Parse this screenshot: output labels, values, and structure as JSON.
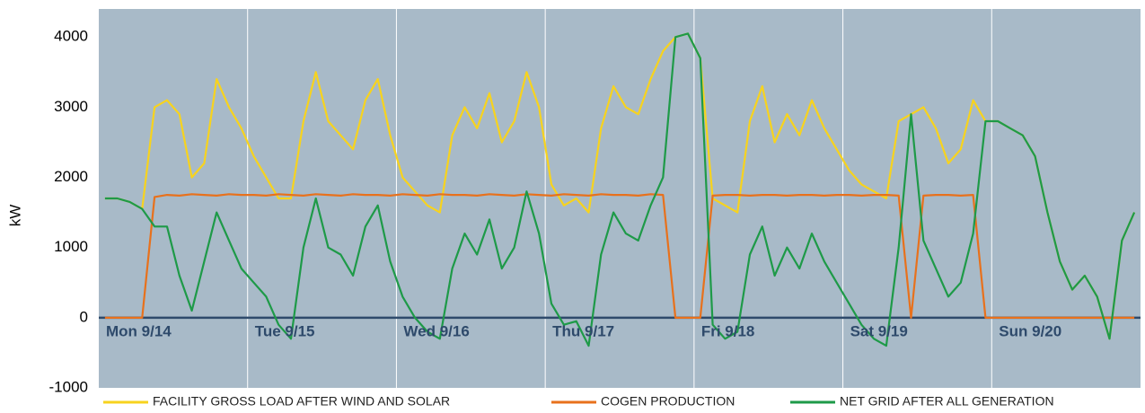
{
  "chart_data": {
    "type": "line",
    "ylabel": "kW",
    "categories": [
      "Mon  9/14",
      null,
      null,
      null,
      null,
      null,
      null,
      null,
      null,
      null,
      null,
      null,
      "Tue  9/15",
      null,
      null,
      null,
      null,
      null,
      null,
      null,
      null,
      null,
      null,
      null,
      "Wed  9/16",
      null,
      null,
      null,
      null,
      null,
      null,
      null,
      null,
      null,
      null,
      null,
      "Thu  9/17",
      null,
      null,
      null,
      null,
      null,
      null,
      null,
      null,
      null,
      null,
      null,
      "Fri  9/18",
      null,
      null,
      null,
      null,
      null,
      null,
      null,
      null,
      null,
      null,
      null,
      "Sat  9/19",
      null,
      null,
      null,
      null,
      null,
      null,
      null,
      null,
      null,
      null,
      null,
      "Sun  9/20",
      null,
      null,
      null,
      null,
      null,
      null,
      null,
      null,
      null,
      null,
      null
    ],
    "series": [
      {
        "name": "FACILITY GROSS LOAD AFTER WIND AND SOLAR",
        "color": "#f7d31e",
        "values": [
          1700,
          1700,
          1650,
          1550,
          3000,
          3100,
          2900,
          2000,
          2200,
          3400,
          3000,
          2700,
          2300,
          2000,
          1700,
          1700,
          2800,
          3500,
          2800,
          2600,
          2400,
          3100,
          3400,
          2600,
          2000,
          1800,
          1600,
          1500,
          2600,
          3000,
          2700,
          3200,
          2500,
          2800,
          3500,
          3000,
          1900,
          1600,
          1700,
          1500,
          2700,
          3300,
          3000,
          2900,
          3400,
          3800,
          4000,
          4050,
          3700,
          1700,
          1600,
          1500,
          2800,
          3300,
          2500,
          2900,
          2600,
          3100,
          2700,
          2400,
          2100,
          1900,
          1800,
          1700,
          2800,
          2900,
          3000,
          2700,
          2200,
          2400,
          3100,
          2800,
          2800,
          2700,
          2600,
          2300,
          1500,
          800,
          400,
          600,
          300,
          -300,
          1100,
          1500
        ]
      },
      {
        "name": "COGEN PRODUCTION",
        "color": "#e8711c",
        "values": [
          0,
          0,
          0,
          0,
          1720,
          1750,
          1740,
          1760,
          1750,
          1740,
          1760,
          1750,
          1750,
          1740,
          1760,
          1750,
          1740,
          1760,
          1750,
          1740,
          1760,
          1750,
          1750,
          1740,
          1760,
          1750,
          1740,
          1760,
          1750,
          1750,
          1740,
          1760,
          1750,
          1740,
          1760,
          1750,
          1740,
          1760,
          1750,
          1740,
          1760,
          1750,
          1750,
          1740,
          1760,
          1750,
          0,
          0,
          0,
          1740,
          1750,
          1750,
          1740,
          1750,
          1750,
          1740,
          1750,
          1750,
          1740,
          1750,
          1750,
          1740,
          1750,
          1750,
          1740,
          0,
          1740,
          1750,
          1750,
          1740,
          1750,
          0,
          0,
          0,
          0,
          0,
          0,
          0,
          0,
          0,
          0,
          0,
          0,
          0
        ]
      },
      {
        "name": "NET GRID AFTER ALL GENERATION",
        "color": "#1e9a48",
        "values": [
          1700,
          1700,
          1650,
          1550,
          1300,
          1300,
          600,
          100,
          800,
          1500,
          1100,
          700,
          500,
          300,
          -100,
          -300,
          1000,
          1700,
          1000,
          900,
          600,
          1300,
          1600,
          800,
          300,
          0,
          -200,
          -300,
          700,
          1200,
          900,
          1400,
          700,
          1000,
          1800,
          1200,
          200,
          -100,
          -50,
          -400,
          900,
          1500,
          1200,
          1100,
          1600,
          2000,
          4000,
          4050,
          3700,
          -100,
          -300,
          -200,
          900,
          1300,
          600,
          1000,
          700,
          1200,
          800,
          500,
          200,
          -100,
          -300,
          -400,
          1000,
          2900,
          1100,
          700,
          300,
          500,
          1200,
          2800,
          2800,
          2700,
          2600,
          2300,
          1500,
          800,
          400,
          600,
          300,
          -300,
          1100,
          1500
        ]
      }
    ],
    "ylim": [
      -1000,
      4400
    ],
    "yticks": [
      -1000,
      0,
      1000,
      2000,
      3000,
      4000
    ],
    "grid": true,
    "legend": "bottom"
  }
}
